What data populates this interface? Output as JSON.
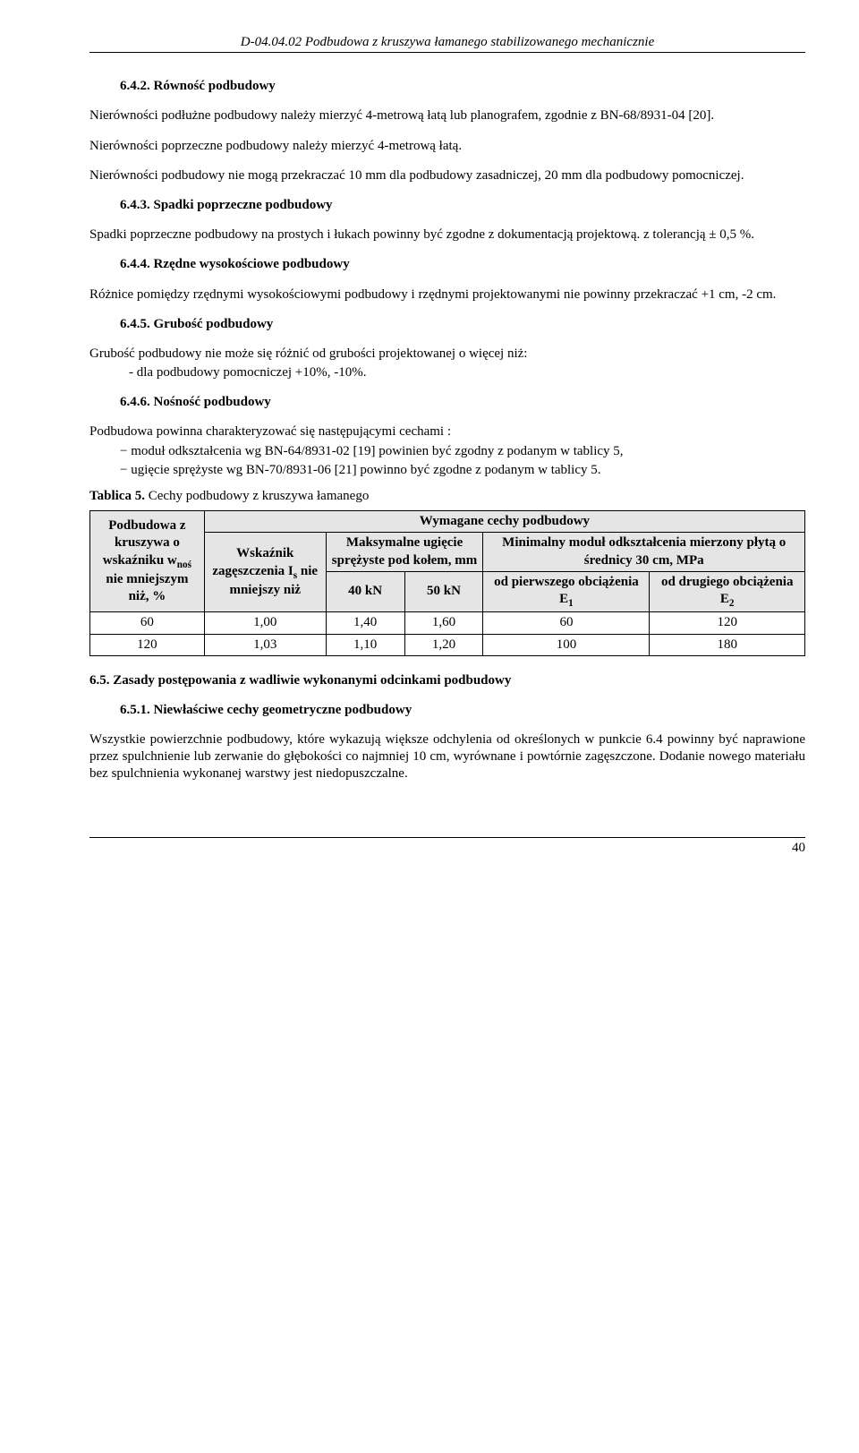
{
  "header": "D-04.04.02  Podbudowa z kruszywa łamanego stabilizowanego mechanicznie",
  "s1": {
    "h": "6.4.2. Równość podbudowy",
    "p1": "Nierówności podłużne podbudowy należy mierzyć 4-metrową łatą lub planografem, zgodnie z BN-68/8931-04 [20].",
    "p2": "Nierówności poprzeczne podbudowy należy mierzyć 4-metrową łatą.",
    "p3": "Nierówności podbudowy nie mogą przekraczać 10 mm dla podbudowy zasadniczej, 20 mm dla podbudowy pomocniczej."
  },
  "s2": {
    "h": "6.4.3. Spadki poprzeczne podbudowy",
    "p1": "Spadki poprzeczne podbudowy na prostych i łukach powinny być zgodne z dokumentacją projektową. z tolerancją ± 0,5 %."
  },
  "s3": {
    "h": "6.4.4. Rzędne wysokościowe podbudowy",
    "p1": "Różnice pomiędzy rzędnymi wysokościowymi podbudowy i rzędnymi projektowanymi  nie  powinny  przekraczać +1 cm, -2 cm."
  },
  "s4": {
    "h": "6.4.5. Grubość podbudowy",
    "p1": "Grubość podbudowy nie może się różnić od grubości projektowanej o więcej niż:",
    "li1": "dla podbudowy pomocniczej +10%, -10%."
  },
  "s5": {
    "h": "6.4.6. Nośność podbudowy",
    "p1": "Podbudowa powinna charakteryzować się następującymi cechami :",
    "d1": "moduł odkształcenia wg BN-64/8931-02 [19] powinien być zgodny z podanym w tablicy 5,",
    "d2": "ugięcie sprężyste wg BN-70/8931-06 [21] powinno być zgodne z podanym w tablicy 5."
  },
  "tbl": {
    "caption_b": "Tablica 5.",
    "caption_r": " Cechy podbudowy z kruszywa łamanego",
    "col_left_html": "Podbudowa z kruszywa o wskaźniku w<span class=\"sub\">noś</span> nie mniejszym niż, %",
    "head_top": "Wymagane cechy podbudowy",
    "c1_html": "Wskaźnik zagęszczenia I<span class=\"sub\">s</span> nie mniejszy niż",
    "c2": "Maksymalne ugięcie sprężyste pod kołem, mm",
    "c3": "Minimalny moduł odkształcenia mierzony płytą o średnicy 30 cm, MPa",
    "c2a": "40 kN",
    "c2b": "50 kN",
    "c3a_html": "od pierwszego obciążenia E<span class=\"sub\">1</span>",
    "c3b_html": "od drugiego obciążenia E<span class=\"sub\">2</span>",
    "rows": [
      [
        "60",
        "1,00",
        "1,40",
        "1,60",
        "60",
        "120"
      ],
      [
        "120",
        "1,03",
        "1,10",
        "1,20",
        "100",
        "180"
      ]
    ]
  },
  "s6": {
    "h": "6.5.  Zasady postępowania z wadliwie wykonanymi odcinkami podbudowy",
    "h2": "6.5.1. Niewłaściwe cechy geometryczne podbudowy",
    "p1": "Wszystkie powierzchnie podbudowy, które wykazują większe odchylenia od określonych w punkcie 6.4 powinny być naprawione przez spulchnienie lub zerwanie do głębokości co najmniej 10 cm, wyrównane i powtórnie zagęszczone. Dodanie nowego materiału bez spulchnienia wykonanej warstwy jest niedopuszczalne."
  },
  "page": "40"
}
